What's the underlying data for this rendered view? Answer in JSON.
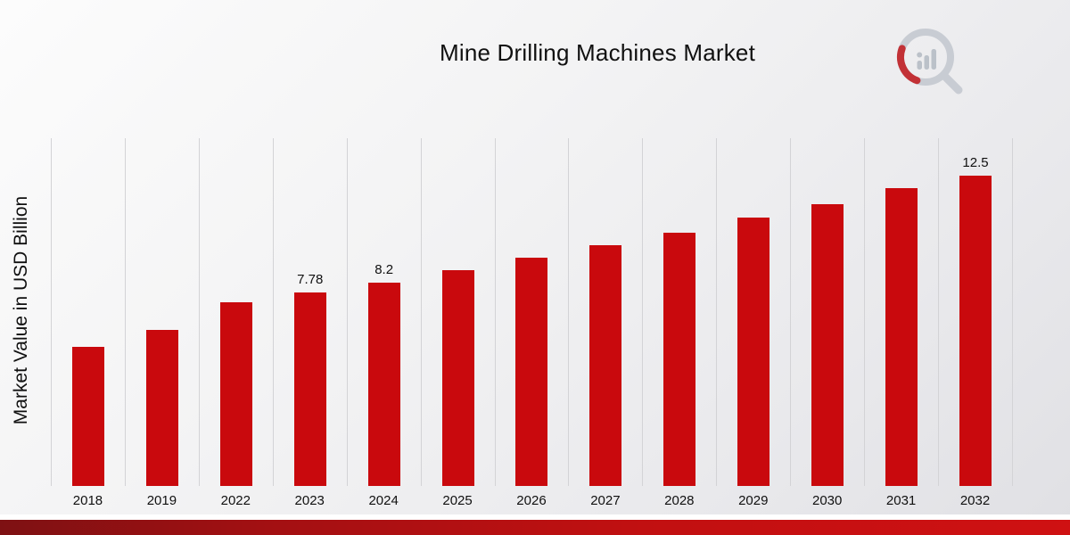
{
  "chart_data": {
    "type": "bar",
    "title": "Mine Drilling Machines Market",
    "ylabel": "Market Value in USD Billion",
    "xlabel": "",
    "categories": [
      "2018",
      "2019",
      "2022",
      "2023",
      "2024",
      "2025",
      "2026",
      "2027",
      "2028",
      "2029",
      "2030",
      "2031",
      "2032"
    ],
    "values": [
      5.6,
      6.3,
      7.4,
      7.78,
      8.2,
      8.7,
      9.2,
      9.7,
      10.2,
      10.8,
      11.35,
      12.0,
      12.5
    ],
    "data_labels": [
      "",
      "",
      "",
      "7.78",
      "8.2",
      "",
      "",
      "",
      "",
      "",
      "",
      "",
      "12.5"
    ],
    "ylim": [
      0,
      14
    ],
    "grid": "vertical",
    "legend": "none",
    "bar_color": "#c9090d"
  },
  "colors": {
    "bar": "#c9090d",
    "gridline": "#d3d3d6",
    "footer_band": "#b01012",
    "logo_gray": "#c7cbd2",
    "logo_red": "#c0272d"
  },
  "icons": {
    "logo": "magnifier-bar-chart-logo"
  }
}
